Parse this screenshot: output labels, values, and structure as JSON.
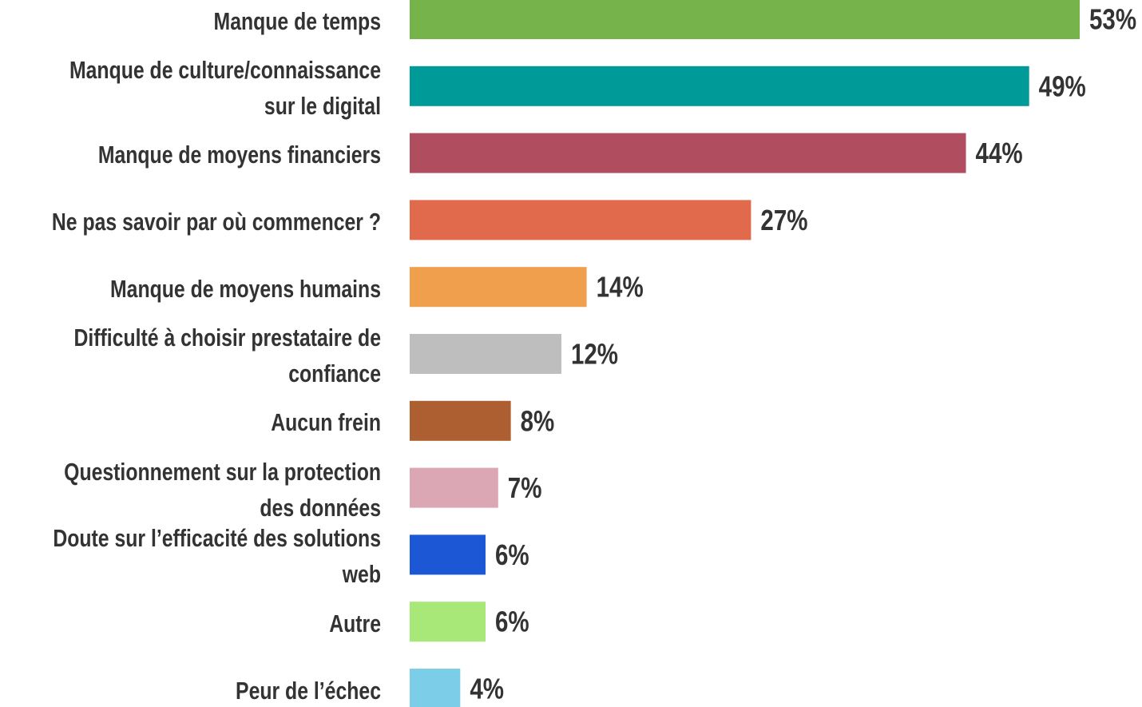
{
  "chart_data": {
    "type": "barh",
    "categories": [
      "Manque de temps",
      "Manque de culture/connaissance\nsur le digital",
      "Manque de moyens financiers",
      "Ne pas savoir par où commencer ?",
      "Manque de moyens humains",
      "Difficulté à choisir prestataire de\nconfiance",
      "Aucun frein",
      "Questionnement sur la protection\ndes données",
      "Doute sur l’efficacité des solutions\nweb",
      "Autre",
      "Peur de l’échec"
    ],
    "values": [
      53,
      49,
      44,
      27,
      14,
      12,
      8,
      7,
      6,
      6,
      4
    ],
    "value_labels": [
      "53%",
      "49%",
      "44%",
      "27%",
      "14%",
      "12%",
      "8%",
      "7%",
      "6%",
      "6%",
      "4%"
    ],
    "colors": [
      "#76b34a",
      "#009b98",
      "#b04e60",
      "#e06a4b",
      "#f0a04c",
      "#bfbebe",
      "#ad5f31",
      "#dba7b4",
      "#1c58d6",
      "#a8e878",
      "#7ccde8"
    ]
  }
}
